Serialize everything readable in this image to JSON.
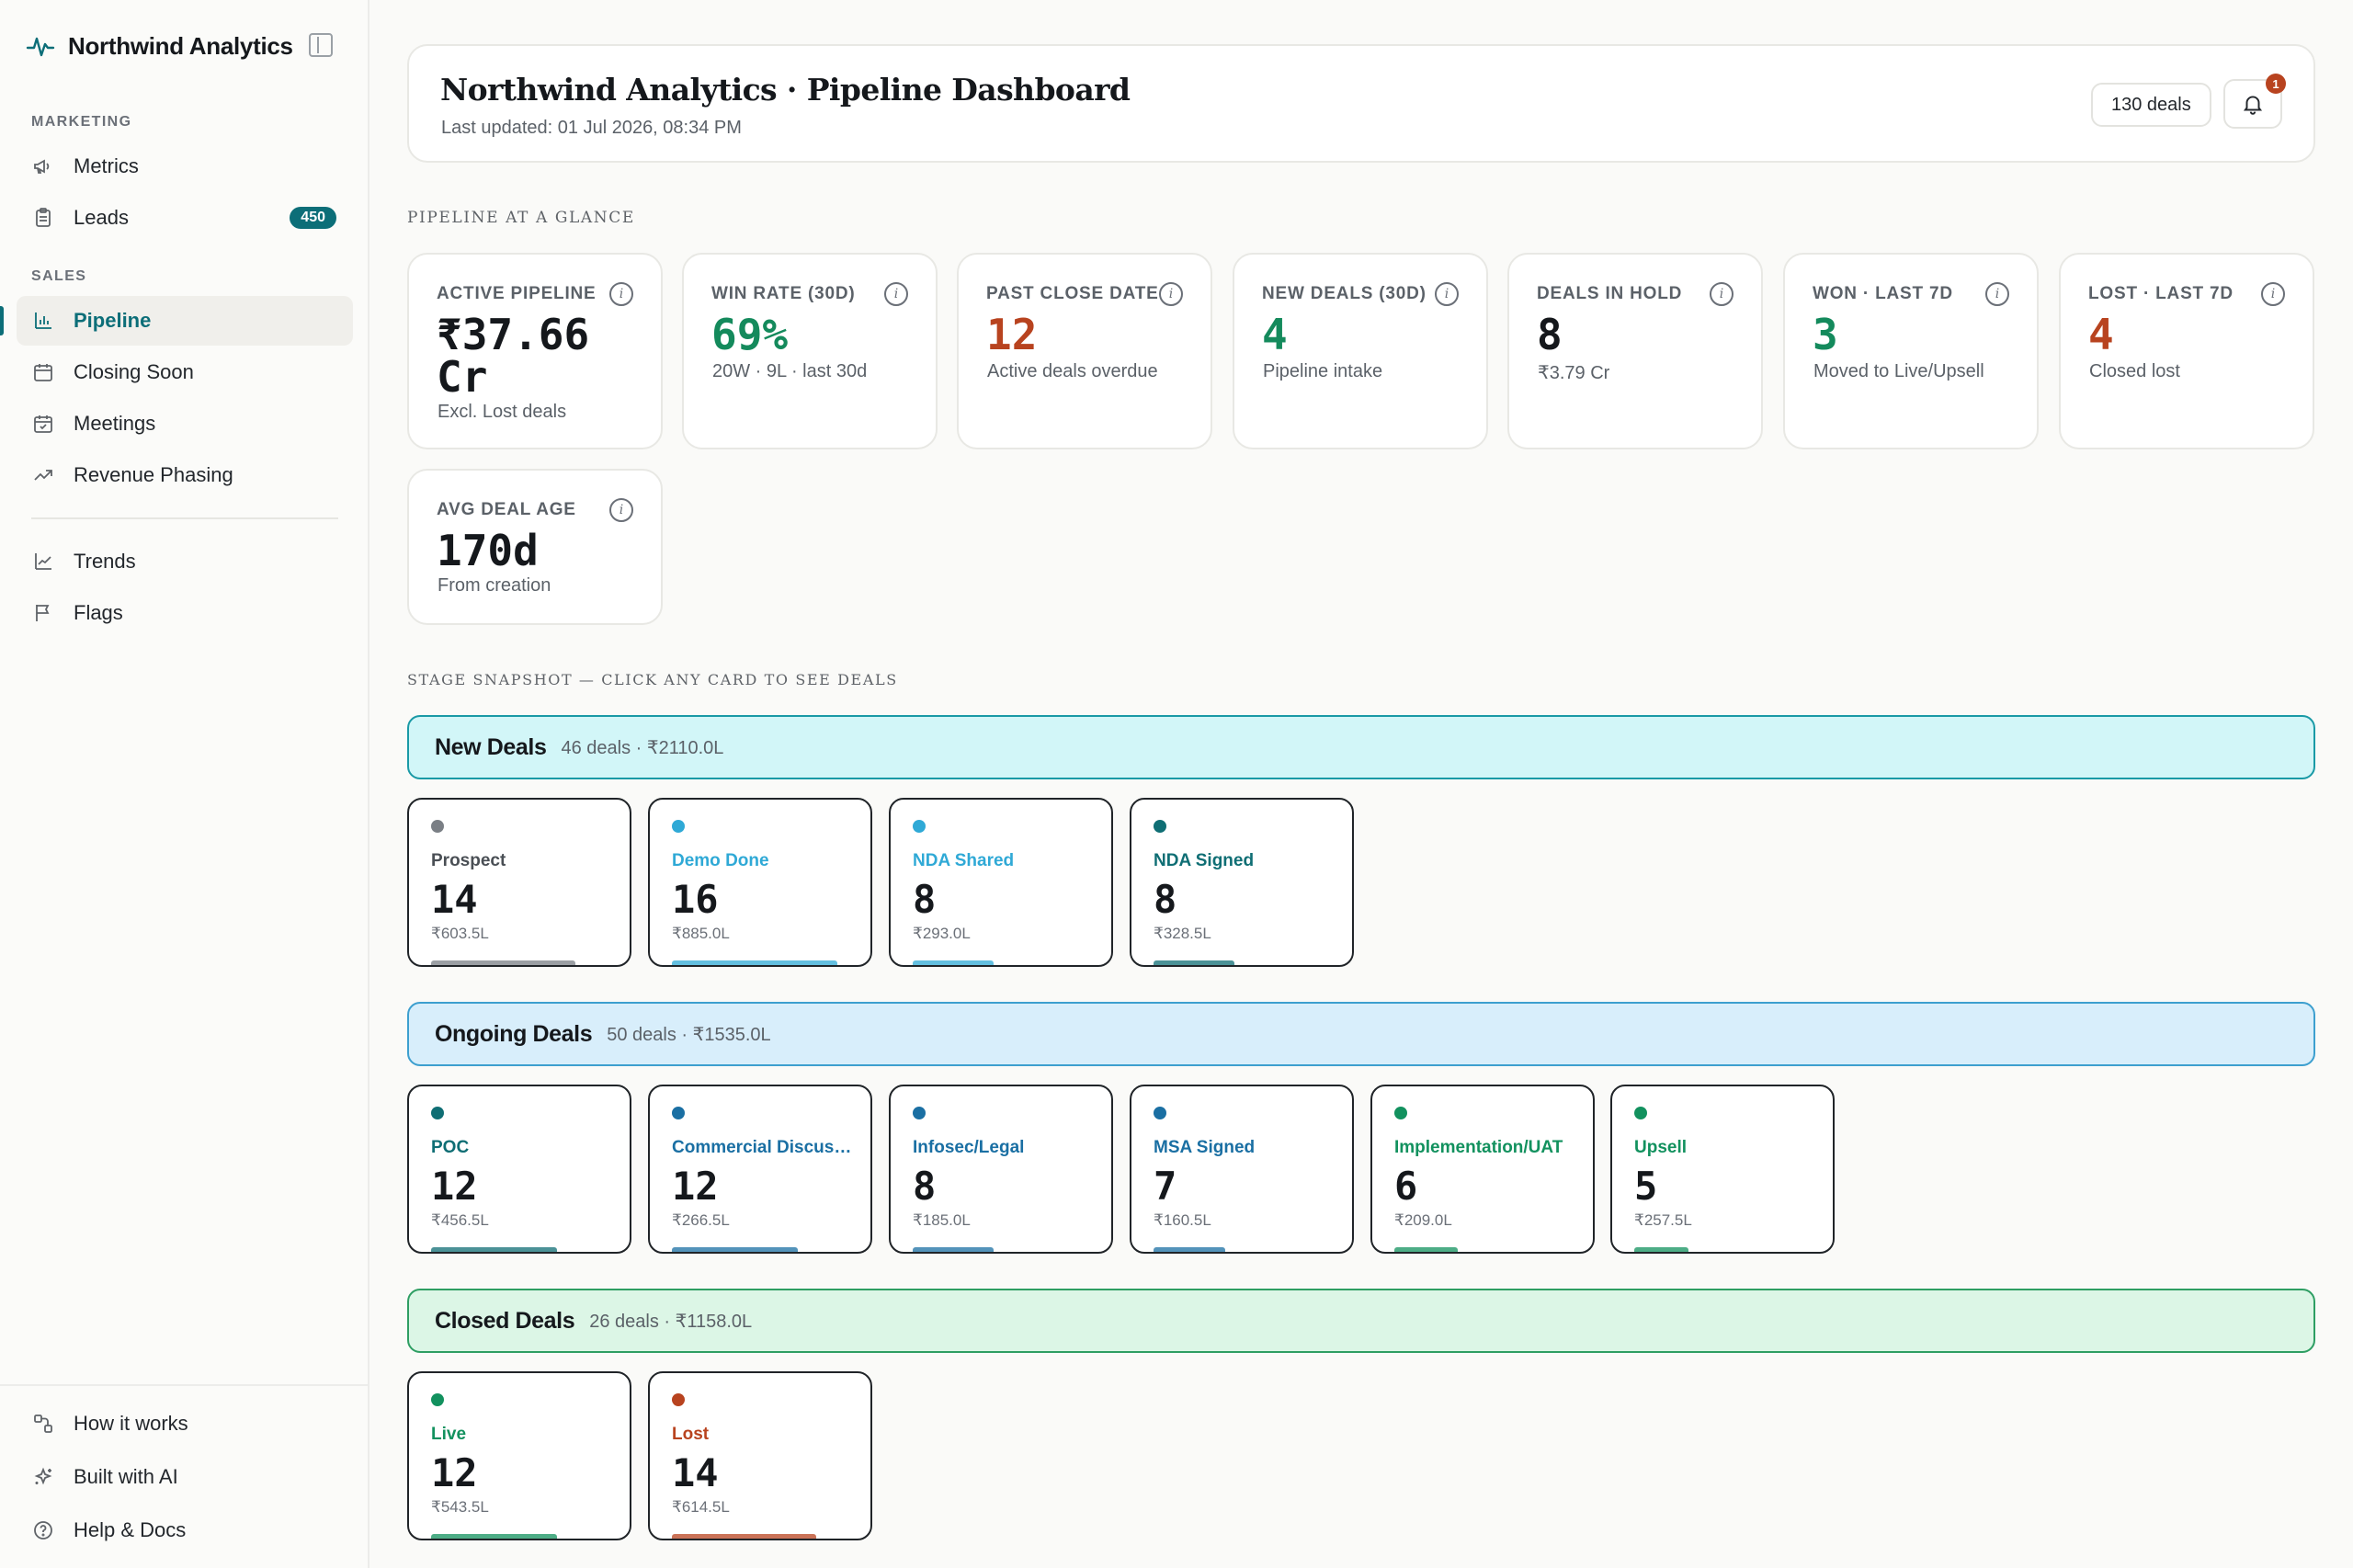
{
  "sidebar": {
    "brand": "Northwind Analytics",
    "sections": {
      "marketing": "MARKETING",
      "sales": "SALES"
    },
    "items": [
      {
        "label": "Metrics",
        "icon": "megaphone-icon"
      },
      {
        "label": "Leads",
        "icon": "clipboard-icon",
        "badge": "450"
      },
      {
        "label": "Pipeline",
        "icon": "bar-chart-icon",
        "active": true
      },
      {
        "label": "Closing Soon",
        "icon": "calendar-icon"
      },
      {
        "label": "Meetings",
        "icon": "calendar-check-icon"
      },
      {
        "label": "Revenue Phasing",
        "icon": "trending-up-icon"
      },
      {
        "label": "Trends",
        "icon": "line-chart-icon"
      },
      {
        "label": "Flags",
        "icon": "flag-icon"
      }
    ],
    "footer": [
      {
        "label": "How it works",
        "icon": "workflow-icon"
      },
      {
        "label": "Built with AI",
        "icon": "sparkles-icon"
      },
      {
        "label": "Help & Docs",
        "icon": "help-circle-icon"
      }
    ]
  },
  "header": {
    "title": "Northwind Analytics · Pipeline Dashboard",
    "updated": "Last updated: 01 Jul 2026, 08:34 PM",
    "deals_pill": "130 deals",
    "notification_count": "1"
  },
  "glance": {
    "title": "PIPELINE AT A GLANCE",
    "kpis": [
      {
        "label": "ACTIVE PIPELINE",
        "value": "₹37.66 Cr",
        "note": "Excl. Lost deals",
        "tone": "neutral"
      },
      {
        "label": "WIN RATE (30D)",
        "value": "69%",
        "note": "20W · 9L · last 30d",
        "tone": "green"
      },
      {
        "label": "PAST CLOSE DATE",
        "value": "12",
        "note": "Active deals overdue",
        "tone": "red"
      },
      {
        "label": "NEW DEALS (30D)",
        "value": "4",
        "note": "Pipeline intake",
        "tone": "green"
      },
      {
        "label": "DEALS IN HOLD",
        "value": "8",
        "note": "₹3.79 Cr",
        "tone": "neutral"
      },
      {
        "label": "WON · LAST 7D",
        "value": "3",
        "note": "Moved to Live/Upsell",
        "tone": "green"
      },
      {
        "label": "LOST · LAST 7D",
        "value": "4",
        "note": "Closed lost",
        "tone": "red"
      },
      {
        "label": "AVG DEAL AGE",
        "value": "170d",
        "note": "From creation",
        "tone": "neutral"
      }
    ]
  },
  "stages": {
    "title": "STAGE SNAPSHOT — CLICK ANY CARD TO SEE DEALS",
    "groups": [
      {
        "name": "New Deals",
        "meta": "46 deals · ₹2110.0L",
        "cards": [
          {
            "name": "Prospect",
            "count": "14",
            "amount": "₹603.5L",
            "color": "#7a7f85",
            "share": 0.8
          },
          {
            "name": "Demo Done",
            "count": "16",
            "amount": "₹885.0L",
            "color": "#2fa9d6",
            "share": 0.92
          },
          {
            "name": "NDA Shared",
            "count": "8",
            "amount": "₹293.0L",
            "color": "#2fa9d6",
            "share": 0.45
          },
          {
            "name": "NDA Signed",
            "count": "8",
            "amount": "₹328.5L",
            "color": "#0f6e74",
            "share": 0.45
          }
        ]
      },
      {
        "name": "Ongoing Deals",
        "meta": "50 deals · ₹1535.0L",
        "cards": [
          {
            "name": "POC",
            "count": "12",
            "amount": "₹456.5L",
            "color": "#0f6e74",
            "share": 0.7
          },
          {
            "name": "Commercial Discussion",
            "count": "12",
            "amount": "₹266.5L",
            "color": "#1a6fa3",
            "share": 0.7
          },
          {
            "name": "Infosec/Legal",
            "count": "8",
            "amount": "₹185.0L",
            "color": "#1a6fa3",
            "share": 0.45
          },
          {
            "name": "MSA Signed",
            "count": "7",
            "amount": "₹160.5L",
            "color": "#1a6fa3",
            "share": 0.4
          },
          {
            "name": "Implementation/UAT",
            "count": "6",
            "amount": "₹209.0L",
            "color": "#12915e",
            "share": 0.35
          },
          {
            "name": "Upsell",
            "count": "5",
            "amount": "₹257.5L",
            "color": "#12915e",
            "share": 0.3
          }
        ]
      },
      {
        "name": "Closed Deals",
        "meta": "26 deals · ₹1158.0L",
        "cards": [
          {
            "name": "Live",
            "count": "12",
            "amount": "₹543.5L",
            "color": "#12915e",
            "share": 0.7
          },
          {
            "name": "Lost",
            "count": "14",
            "amount": "₹614.5L",
            "color": "#b8431f",
            "share": 0.8
          }
        ]
      }
    ]
  }
}
